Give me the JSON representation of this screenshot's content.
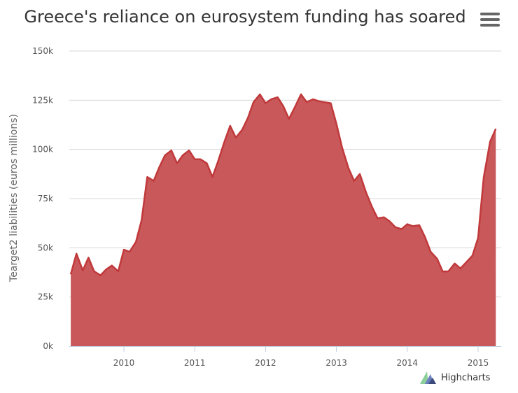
{
  "chart_data": {
    "type": "area",
    "title": "Greece's reliance on eurosystem funding has soared",
    "ylabel": "Tearget2 liabilities (euros millions)",
    "xlabel": "",
    "ylim": [
      0,
      150000
    ],
    "xlim": [
      2009.25,
      2015.28
    ],
    "y_ticks": [
      "0k",
      "25k",
      "50k",
      "75k",
      "100k",
      "125k",
      "150k"
    ],
    "y_tick_values": [
      0,
      25000,
      50000,
      75000,
      100000,
      125000,
      150000
    ],
    "x_ticks": [
      "2010",
      "2011",
      "2012",
      "2013",
      "2014",
      "2015"
    ],
    "x_tick_values": [
      2010,
      2011,
      2012,
      2013,
      2014,
      2015
    ],
    "grid": true,
    "legend": "none",
    "color": "#c0393b",
    "fill_color": "#c9585a",
    "series": [
      {
        "values": [
          [
            2009.25,
            36500
          ],
          [
            2009.33,
            47000
          ],
          [
            2009.42,
            38500
          ],
          [
            2009.5,
            45000
          ],
          [
            2009.58,
            38000
          ],
          [
            2009.67,
            36000
          ],
          [
            2009.75,
            39000
          ],
          [
            2009.83,
            41000
          ],
          [
            2009.92,
            38000
          ],
          [
            2010.0,
            49000
          ],
          [
            2010.08,
            48000
          ],
          [
            2010.17,
            53000
          ],
          [
            2010.25,
            64000
          ],
          [
            2010.33,
            86000
          ],
          [
            2010.42,
            84000
          ],
          [
            2010.5,
            91000
          ],
          [
            2010.58,
            97000
          ],
          [
            2010.67,
            99500
          ],
          [
            2010.75,
            93000
          ],
          [
            2010.83,
            97000
          ],
          [
            2010.92,
            99500
          ],
          [
            2011.0,
            95000
          ],
          [
            2011.08,
            95000
          ],
          [
            2011.17,
            93000
          ],
          [
            2011.25,
            86000
          ],
          [
            2011.33,
            94000
          ],
          [
            2011.42,
            104000
          ],
          [
            2011.5,
            112000
          ],
          [
            2011.58,
            106000
          ],
          [
            2011.67,
            110000
          ],
          [
            2011.75,
            116000
          ],
          [
            2011.83,
            124000
          ],
          [
            2011.92,
            128000
          ],
          [
            2012.0,
            123500
          ],
          [
            2012.08,
            125500
          ],
          [
            2012.17,
            126500
          ],
          [
            2012.25,
            122000
          ],
          [
            2012.33,
            115500
          ],
          [
            2012.42,
            122000
          ],
          [
            2012.5,
            128000
          ],
          [
            2012.58,
            124000
          ],
          [
            2012.67,
            125500
          ],
          [
            2012.75,
            124500
          ],
          [
            2012.83,
            124000
          ],
          [
            2012.92,
            123500
          ],
          [
            2013.0,
            113000
          ],
          [
            2013.08,
            101000
          ],
          [
            2013.17,
            90500
          ],
          [
            2013.25,
            84000
          ],
          [
            2013.33,
            87500
          ],
          [
            2013.42,
            78000
          ],
          [
            2013.5,
            71000
          ],
          [
            2013.58,
            65000
          ],
          [
            2013.67,
            65500
          ],
          [
            2013.75,
            63500
          ],
          [
            2013.83,
            60500
          ],
          [
            2013.92,
            59500
          ],
          [
            2014.0,
            62000
          ],
          [
            2014.08,
            61000
          ],
          [
            2014.17,
            61500
          ],
          [
            2014.25,
            55500
          ],
          [
            2014.33,
            48000
          ],
          [
            2014.42,
            44500
          ],
          [
            2014.5,
            38000
          ],
          [
            2014.58,
            38000
          ],
          [
            2014.67,
            42000
          ],
          [
            2014.75,
            39500
          ],
          [
            2014.83,
            42500
          ],
          [
            2014.92,
            46000
          ],
          [
            2015.0,
            55000
          ],
          [
            2015.08,
            86000
          ],
          [
            2015.17,
            104000
          ],
          [
            2015.25,
            110500
          ]
        ]
      }
    ]
  },
  "menu": {
    "icon": "hamburger-menu-icon"
  },
  "credits": {
    "label": "Highcharts",
    "icon": "highcharts-logo-icon"
  }
}
